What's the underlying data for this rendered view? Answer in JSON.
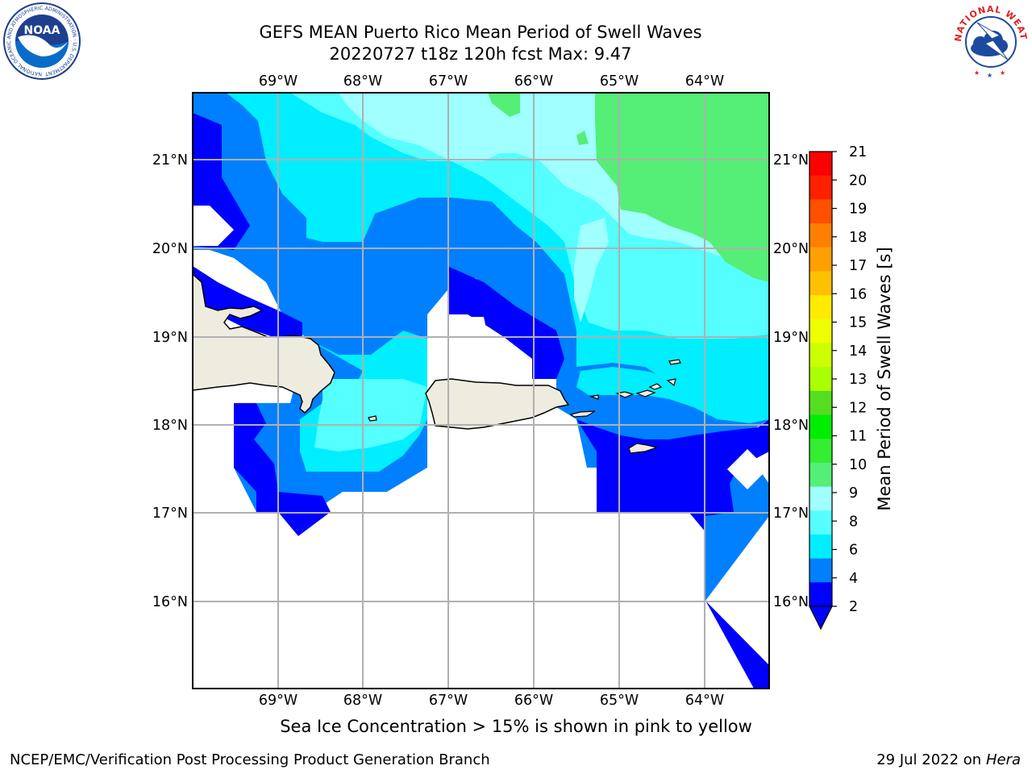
{
  "title": {
    "line1": "GEFS MEAN Puerto Rico Mean Period of Swell Waves",
    "line2": "20220727 t18z 120h fcst   Max: 9.47"
  },
  "map": {
    "lon_labels": [
      "69°W",
      "68°W",
      "67°W",
      "66°W",
      "65°W",
      "64°W"
    ],
    "lat_labels": [
      "21°N",
      "20°N",
      "19°N",
      "18°N",
      "17°N",
      "16°N"
    ],
    "extent": {
      "lon_min": -70,
      "lon_max": -63.25,
      "lat_min": 15.0,
      "lat_max": 21.75
    },
    "grid": "on"
  },
  "colorbar": {
    "label": "Mean Period of Swell Waves [s]",
    "ticks": [
      "21",
      "20",
      "19",
      "18",
      "17",
      "16",
      "15",
      "14",
      "13",
      "12",
      "11",
      "10",
      "9",
      "8",
      "6",
      "4",
      "2"
    ],
    "colors": [
      "#ff0000",
      "#ff2000",
      "#ff5000",
      "#ff8000",
      "#ffa000",
      "#ffc000",
      "#ffeb00",
      "#eeff00",
      "#ccff00",
      "#aaff00",
      "#55dd22",
      "#00ee00",
      "#33ee33",
      "#55ee77",
      "#a0ffff",
      "#55ffff",
      "#00eeff",
      "#0080ff",
      "#0000ff"
    ],
    "extend": "min"
  },
  "caption": "Sea Ice Concentration > 15% is shown in pink to yellow",
  "footer": {
    "left": "NCEP/EMC/Verification Post Processing Product Generation Branch",
    "date": "29 Jul 2022 on ",
    "machine": "Hera"
  },
  "logos": {
    "noaa": "NOAA",
    "noaa_ring": "NATIONAL OCEANIC AND ATMOSPHERIC ADMINISTRATION · U.S. DEPARTMENT OF COMMERCE",
    "nws_ring": "NATIONAL WEATHER SERVICE"
  }
}
